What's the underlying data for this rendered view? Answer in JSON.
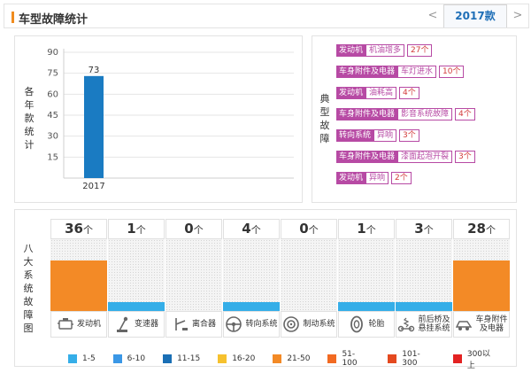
{
  "header": {
    "title": "车型故障统计",
    "prev": "<",
    "year": "2017款",
    "next": ">"
  },
  "chart_panel": {
    "vertical_label": "各年款统计"
  },
  "chart_data": {
    "type": "bar",
    "categories": [
      "2017"
    ],
    "values": [
      73
    ],
    "data_labels": [
      "73"
    ],
    "yticks": [
      15,
      30,
      45,
      60,
      75,
      90
    ],
    "ylim": [
      0,
      90
    ],
    "bar_color": "#1a7bc2",
    "grid": "horizontal"
  },
  "fault_panel": {
    "vertical_label": "典型故障",
    "items": [
      {
        "system": "发动机",
        "symptom": "机油增多",
        "count": "27个"
      },
      {
        "system": "车身附件及电器",
        "symptom": "车灯进水",
        "count": "10个"
      },
      {
        "system": "发动机",
        "symptom": "油耗高",
        "count": "4个"
      },
      {
        "system": "车身附件及电器",
        "symptom": "影音系统故障",
        "count": "4个"
      },
      {
        "system": "转向系统",
        "symptom": "异响",
        "count": "3个"
      },
      {
        "system": "车身附件及电器",
        "symptom": "漆面起泡开裂",
        "count": "3个"
      },
      {
        "system": "发动机",
        "symptom": "异响",
        "count": "2个"
      }
    ]
  },
  "systems_panel": {
    "vertical_label": "八大系统故障图",
    "unit": "个",
    "systems": [
      {
        "name": "发动机",
        "count": "36",
        "level": 0.7,
        "color": "#f38a26",
        "icon": "engine-icon"
      },
      {
        "name": "变速器",
        "count": "1",
        "level": 0.12,
        "color": "#35aee8",
        "icon": "gearbox-icon"
      },
      {
        "name": "离合器",
        "count": "0",
        "level": 0,
        "color": "#35aee8",
        "icon": "clutch-icon"
      },
      {
        "name": "转向系统",
        "count": "4",
        "level": 0.12,
        "color": "#35aee8",
        "icon": "steering-icon"
      },
      {
        "name": "制动系统",
        "count": "0",
        "level": 0,
        "color": "#35aee8",
        "icon": "brake-icon"
      },
      {
        "name": "轮胎",
        "count": "1",
        "level": 0.12,
        "color": "#35aee8",
        "icon": "tire-icon"
      },
      {
        "name": "前后桥及悬挂系统",
        "count": "3",
        "level": 0.12,
        "color": "#35aee8",
        "icon": "suspension-icon",
        "label_lines": [
          "前后桥及",
          "悬挂系统"
        ]
      },
      {
        "name": "车身附件及电器",
        "count": "28",
        "level": 0.7,
        "color": "#f38a26",
        "icon": "body-electric-icon",
        "label_lines": [
          "车身附件",
          "及电器"
        ]
      }
    ]
  },
  "legend": [
    {
      "label": "1-5",
      "color": "#35aee8"
    },
    {
      "label": "6-10",
      "color": "#3a97e6"
    },
    {
      "label": "11-15",
      "color": "#1a6fb5"
    },
    {
      "label": "16-20",
      "color": "#f6c12e"
    },
    {
      "label": "21-50",
      "color": "#f38a26"
    },
    {
      "label": "51-100",
      "color": "#f26a22"
    },
    {
      "label": "101-300",
      "color": "#e4491f"
    },
    {
      "label": "300以上",
      "color": "#e32222"
    }
  ]
}
